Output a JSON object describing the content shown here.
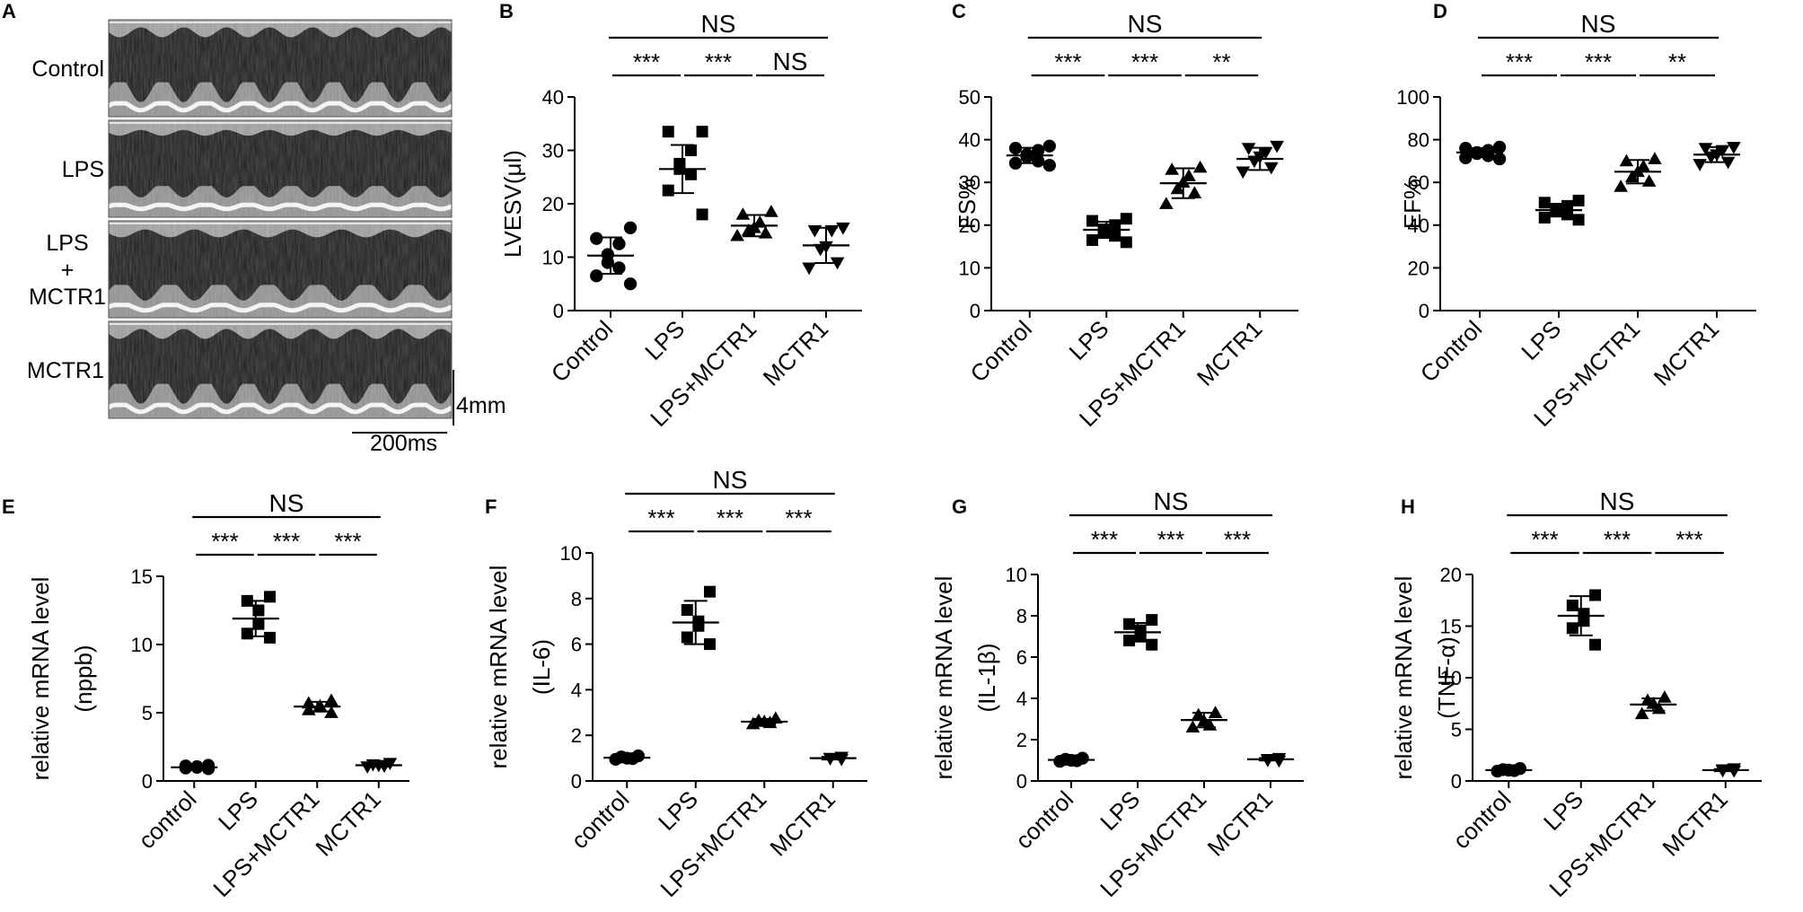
{
  "panel_a": {
    "letter": "A",
    "rows": [
      {
        "label_lines": [
          "Control"
        ]
      },
      {
        "label_lines": [
          "LPS"
        ]
      },
      {
        "label_lines": [
          "LPS",
          "+",
          "MCTR1"
        ]
      },
      {
        "label_lines": [
          "MCTR1"
        ]
      }
    ],
    "scale_v": "4mm",
    "scale_h": "200ms"
  },
  "chart_data": [
    {
      "id": "B",
      "type": "scatter",
      "letter": "B",
      "ylabel_lines": [
        "LVESV(μl)"
      ],
      "categories": [
        "Control",
        "LPS",
        "LPS+MCTR1",
        "MCTR1"
      ],
      "ylim": [
        0,
        40
      ],
      "yticks": [
        0,
        10,
        20,
        30,
        40
      ],
      "markers": [
        "circle",
        "square",
        "triangle",
        "triangle-down"
      ],
      "points": [
        [
          15.5,
          13.5,
          12.5,
          10.5,
          9.0,
          8.0,
          6.5,
          5.0
        ],
        [
          33.5,
          33.5,
          30.0,
          27.5,
          26.5,
          25.5,
          22.5,
          18.0
        ],
        [
          18.5,
          18.0,
          16.5,
          15.5,
          15.0,
          14.5,
          14.0
        ],
        [
          15.5,
          15.0,
          15.0,
          12.0,
          11.5,
          9.0,
          8.0
        ]
      ],
      "means": [
        10.3,
        26.5,
        15.9,
        12.2
      ],
      "sds": [
        3.4,
        4.5,
        2.0,
        3.3
      ],
      "comparisons": [
        {
          "from": 0,
          "to": 1,
          "label": "***",
          "level": 1
        },
        {
          "from": 1,
          "to": 2,
          "label": "***",
          "level": 1
        },
        {
          "from": 2,
          "to": 3,
          "label": "NS",
          "level": 1
        },
        {
          "from": 0,
          "to": 3,
          "label": "NS",
          "level": 2
        }
      ]
    },
    {
      "id": "C",
      "type": "scatter",
      "letter": "C",
      "ylabel_lines": [
        "FS%"
      ],
      "categories": [
        "Control",
        "LPS",
        "LPS+MCTR1",
        "MCTR1"
      ],
      "ylim": [
        0,
        50
      ],
      "yticks": [
        0,
        10,
        20,
        30,
        40,
        50
      ],
      "markers": [
        "circle",
        "square",
        "triangle",
        "triangle-down"
      ],
      "points": [
        [
          38.5,
          38.0,
          37.5,
          36.5,
          36.0,
          35.0,
          34.5,
          34.0
        ],
        [
          21.5,
          21.0,
          20.0,
          19.0,
          18.5,
          17.5,
          16.5,
          16.0
        ],
        [
          33.5,
          33.0,
          31.5,
          30.0,
          28.5,
          27.5,
          25.0
        ],
        [
          38.5,
          38.0,
          37.0,
          36.0,
          35.0,
          33.5,
          32.5
        ]
      ],
      "means": [
        36.3,
        18.9,
        29.8,
        35.5
      ],
      "sds": [
        1.8,
        1.9,
        3.5,
        2.6
      ],
      "comparisons": [
        {
          "from": 0,
          "to": 1,
          "label": "***",
          "level": 1
        },
        {
          "from": 1,
          "to": 2,
          "label": "***",
          "level": 1
        },
        {
          "from": 2,
          "to": 3,
          "label": "**",
          "level": 1
        },
        {
          "from": 0,
          "to": 3,
          "label": "NS",
          "level": 2
        }
      ]
    },
    {
      "id": "D",
      "type": "scatter",
      "letter": "D",
      "ylabel_lines": [
        "EF%"
      ],
      "categories": [
        "Control",
        "LPS",
        "LPS+MCTR1",
        "MCTR1"
      ],
      "ylim": [
        0,
        100
      ],
      "yticks": [
        0,
        20,
        40,
        60,
        80,
        100
      ],
      "markers": [
        "circle",
        "square",
        "triangle",
        "triangle-down"
      ],
      "points": [
        [
          76.5,
          76.0,
          75.0,
          74.0,
          73.5,
          72.5,
          71.5,
          71.0
        ],
        [
          51.5,
          50.5,
          49.0,
          47.0,
          46.5,
          45.0,
          43.5,
          42.5
        ],
        [
          71.0,
          70.0,
          67.5,
          65.0,
          62.5,
          60.5,
          58.0
        ],
        [
          76.5,
          76.0,
          75.0,
          73.0,
          72.0,
          69.5,
          68.5
        ]
      ],
      "means": [
        74.0,
        47.0,
        65.0,
        73.0
      ],
      "sds": [
        2.0,
        3.0,
        5.5,
        3.5
      ],
      "comparisons": [
        {
          "from": 0,
          "to": 1,
          "label": "***",
          "level": 1
        },
        {
          "from": 1,
          "to": 2,
          "label": "***",
          "level": 1
        },
        {
          "from": 2,
          "to": 3,
          "label": "**",
          "level": 1
        },
        {
          "from": 0,
          "to": 3,
          "label": "NS",
          "level": 2
        }
      ]
    },
    {
      "id": "E",
      "type": "scatter",
      "letter": "E",
      "ylabel_lines": [
        "relative  mRNA  level",
        "(nppb)"
      ],
      "categories": [
        "control",
        "LPS",
        "LPS+MCTR1",
        "MCTR1"
      ],
      "ylim": [
        0,
        15
      ],
      "yticks": [
        0,
        5,
        10,
        15
      ],
      "markers": [
        "circle",
        "square",
        "triangle",
        "triangle-down"
      ],
      "points": [
        [
          1.15,
          1.1,
          1.05,
          1.0,
          0.95,
          0.9
        ],
        [
          13.5,
          13.2,
          12.5,
          11.5,
          10.8,
          10.5
        ],
        [
          5.9,
          5.7,
          5.5,
          5.4,
          5.2,
          5.0
        ],
        [
          1.3,
          1.2,
          1.15,
          1.1,
          1.05
        ]
      ],
      "means": [
        1.0,
        11.9,
        5.45,
        1.15
      ],
      "sds": [
        0.1,
        1.3,
        0.35,
        0.1
      ],
      "comparisons": [
        {
          "from": 0,
          "to": 1,
          "label": "***",
          "level": 1
        },
        {
          "from": 1,
          "to": 2,
          "label": "***",
          "level": 1
        },
        {
          "from": 2,
          "to": 3,
          "label": "***",
          "level": 1
        },
        {
          "from": 0,
          "to": 3,
          "label": "NS",
          "level": 2
        }
      ]
    },
    {
      "id": "F",
      "type": "scatter",
      "letter": "F",
      "ylabel_lines": [
        "relative mRNA level",
        "(IL-6)"
      ],
      "categories": [
        "control",
        "LPS",
        "LPS+MCTR1",
        "MCTR1"
      ],
      "ylim": [
        0,
        10
      ],
      "yticks": [
        0,
        2,
        4,
        6,
        8,
        10
      ],
      "markers": [
        "circle",
        "square",
        "triangle",
        "triangle-down"
      ],
      "points": [
        [
          1.1,
          1.05,
          1.0,
          0.98,
          0.95
        ],
        [
          8.3,
          7.5,
          7.0,
          6.8,
          6.3,
          6.0
        ],
        [
          2.75,
          2.65,
          2.6,
          2.55,
          2.5
        ],
        [
          1.05,
          1.0,
          0.98,
          0.95
        ]
      ],
      "means": [
        1.02,
        6.95,
        2.6,
        1.0
      ],
      "sds": [
        0.06,
        0.95,
        0.12,
        0.06
      ],
      "comparisons": [
        {
          "from": 0,
          "to": 1,
          "label": "***",
          "level": 1
        },
        {
          "from": 1,
          "to": 2,
          "label": "***",
          "level": 1
        },
        {
          "from": 2,
          "to": 3,
          "label": "***",
          "level": 1
        },
        {
          "from": 0,
          "to": 3,
          "label": "NS",
          "level": 2
        }
      ]
    },
    {
      "id": "G",
      "type": "scatter",
      "letter": "G",
      "ylabel_lines": [
        "relative mRNA level",
        "(IL-1β)"
      ],
      "categories": [
        "control",
        "LPS",
        "LPS+MCTR1",
        "MCTR1"
      ],
      "ylim": [
        0,
        10
      ],
      "yticks": [
        0,
        2,
        4,
        6,
        8,
        10
      ],
      "markers": [
        "circle",
        "square",
        "triangle",
        "triangle-down"
      ],
      "points": [
        [
          1.1,
          1.05,
          1.0,
          0.98,
          0.95
        ],
        [
          7.8,
          7.6,
          7.3,
          7.0,
          6.8,
          6.6
        ],
        [
          3.3,
          3.2,
          2.9,
          2.7,
          2.6
        ],
        [
          1.1,
          1.05,
          1.0,
          0.98
        ]
      ],
      "means": [
        1.02,
        7.2,
        2.95,
        1.05
      ],
      "sds": [
        0.06,
        0.45,
        0.35,
        0.06
      ],
      "comparisons": [
        {
          "from": 0,
          "to": 1,
          "label": "***",
          "level": 1
        },
        {
          "from": 1,
          "to": 2,
          "label": "***",
          "level": 1
        },
        {
          "from": 2,
          "to": 3,
          "label": "***",
          "level": 1
        },
        {
          "from": 0,
          "to": 3,
          "label": "NS",
          "level": 2
        }
      ]
    },
    {
      "id": "H",
      "type": "scatter",
      "letter": "H",
      "ylabel_lines": [
        "relative mRNA level",
        "(TNF-α)"
      ],
      "categories": [
        "control",
        "LPS",
        "LPS+MCTR1",
        "MCTR1"
      ],
      "ylim": [
        0,
        20
      ],
      "yticks": [
        0,
        5,
        10,
        15,
        20
      ],
      "markers": [
        "circle",
        "square",
        "triangle",
        "triangle-down"
      ],
      "points": [
        [
          1.2,
          1.1,
          1.05,
          1.0,
          0.95
        ],
        [
          18.0,
          17.0,
          16.2,
          15.5,
          14.8,
          13.2
        ],
        [
          8.1,
          7.8,
          7.5,
          7.0,
          6.5
        ],
        [
          1.2,
          1.1,
          1.0,
          0.98
        ]
      ],
      "means": [
        1.05,
        16.0,
        7.4,
        1.05
      ],
      "sds": [
        0.1,
        1.9,
        0.6,
        0.1
      ],
      "comparisons": [
        {
          "from": 0,
          "to": 1,
          "label": "***",
          "level": 1
        },
        {
          "from": 1,
          "to": 2,
          "label": "***",
          "level": 1
        },
        {
          "from": 2,
          "to": 3,
          "label": "***",
          "level": 1
        },
        {
          "from": 0,
          "to": 3,
          "label": "NS",
          "level": 2
        }
      ]
    }
  ]
}
